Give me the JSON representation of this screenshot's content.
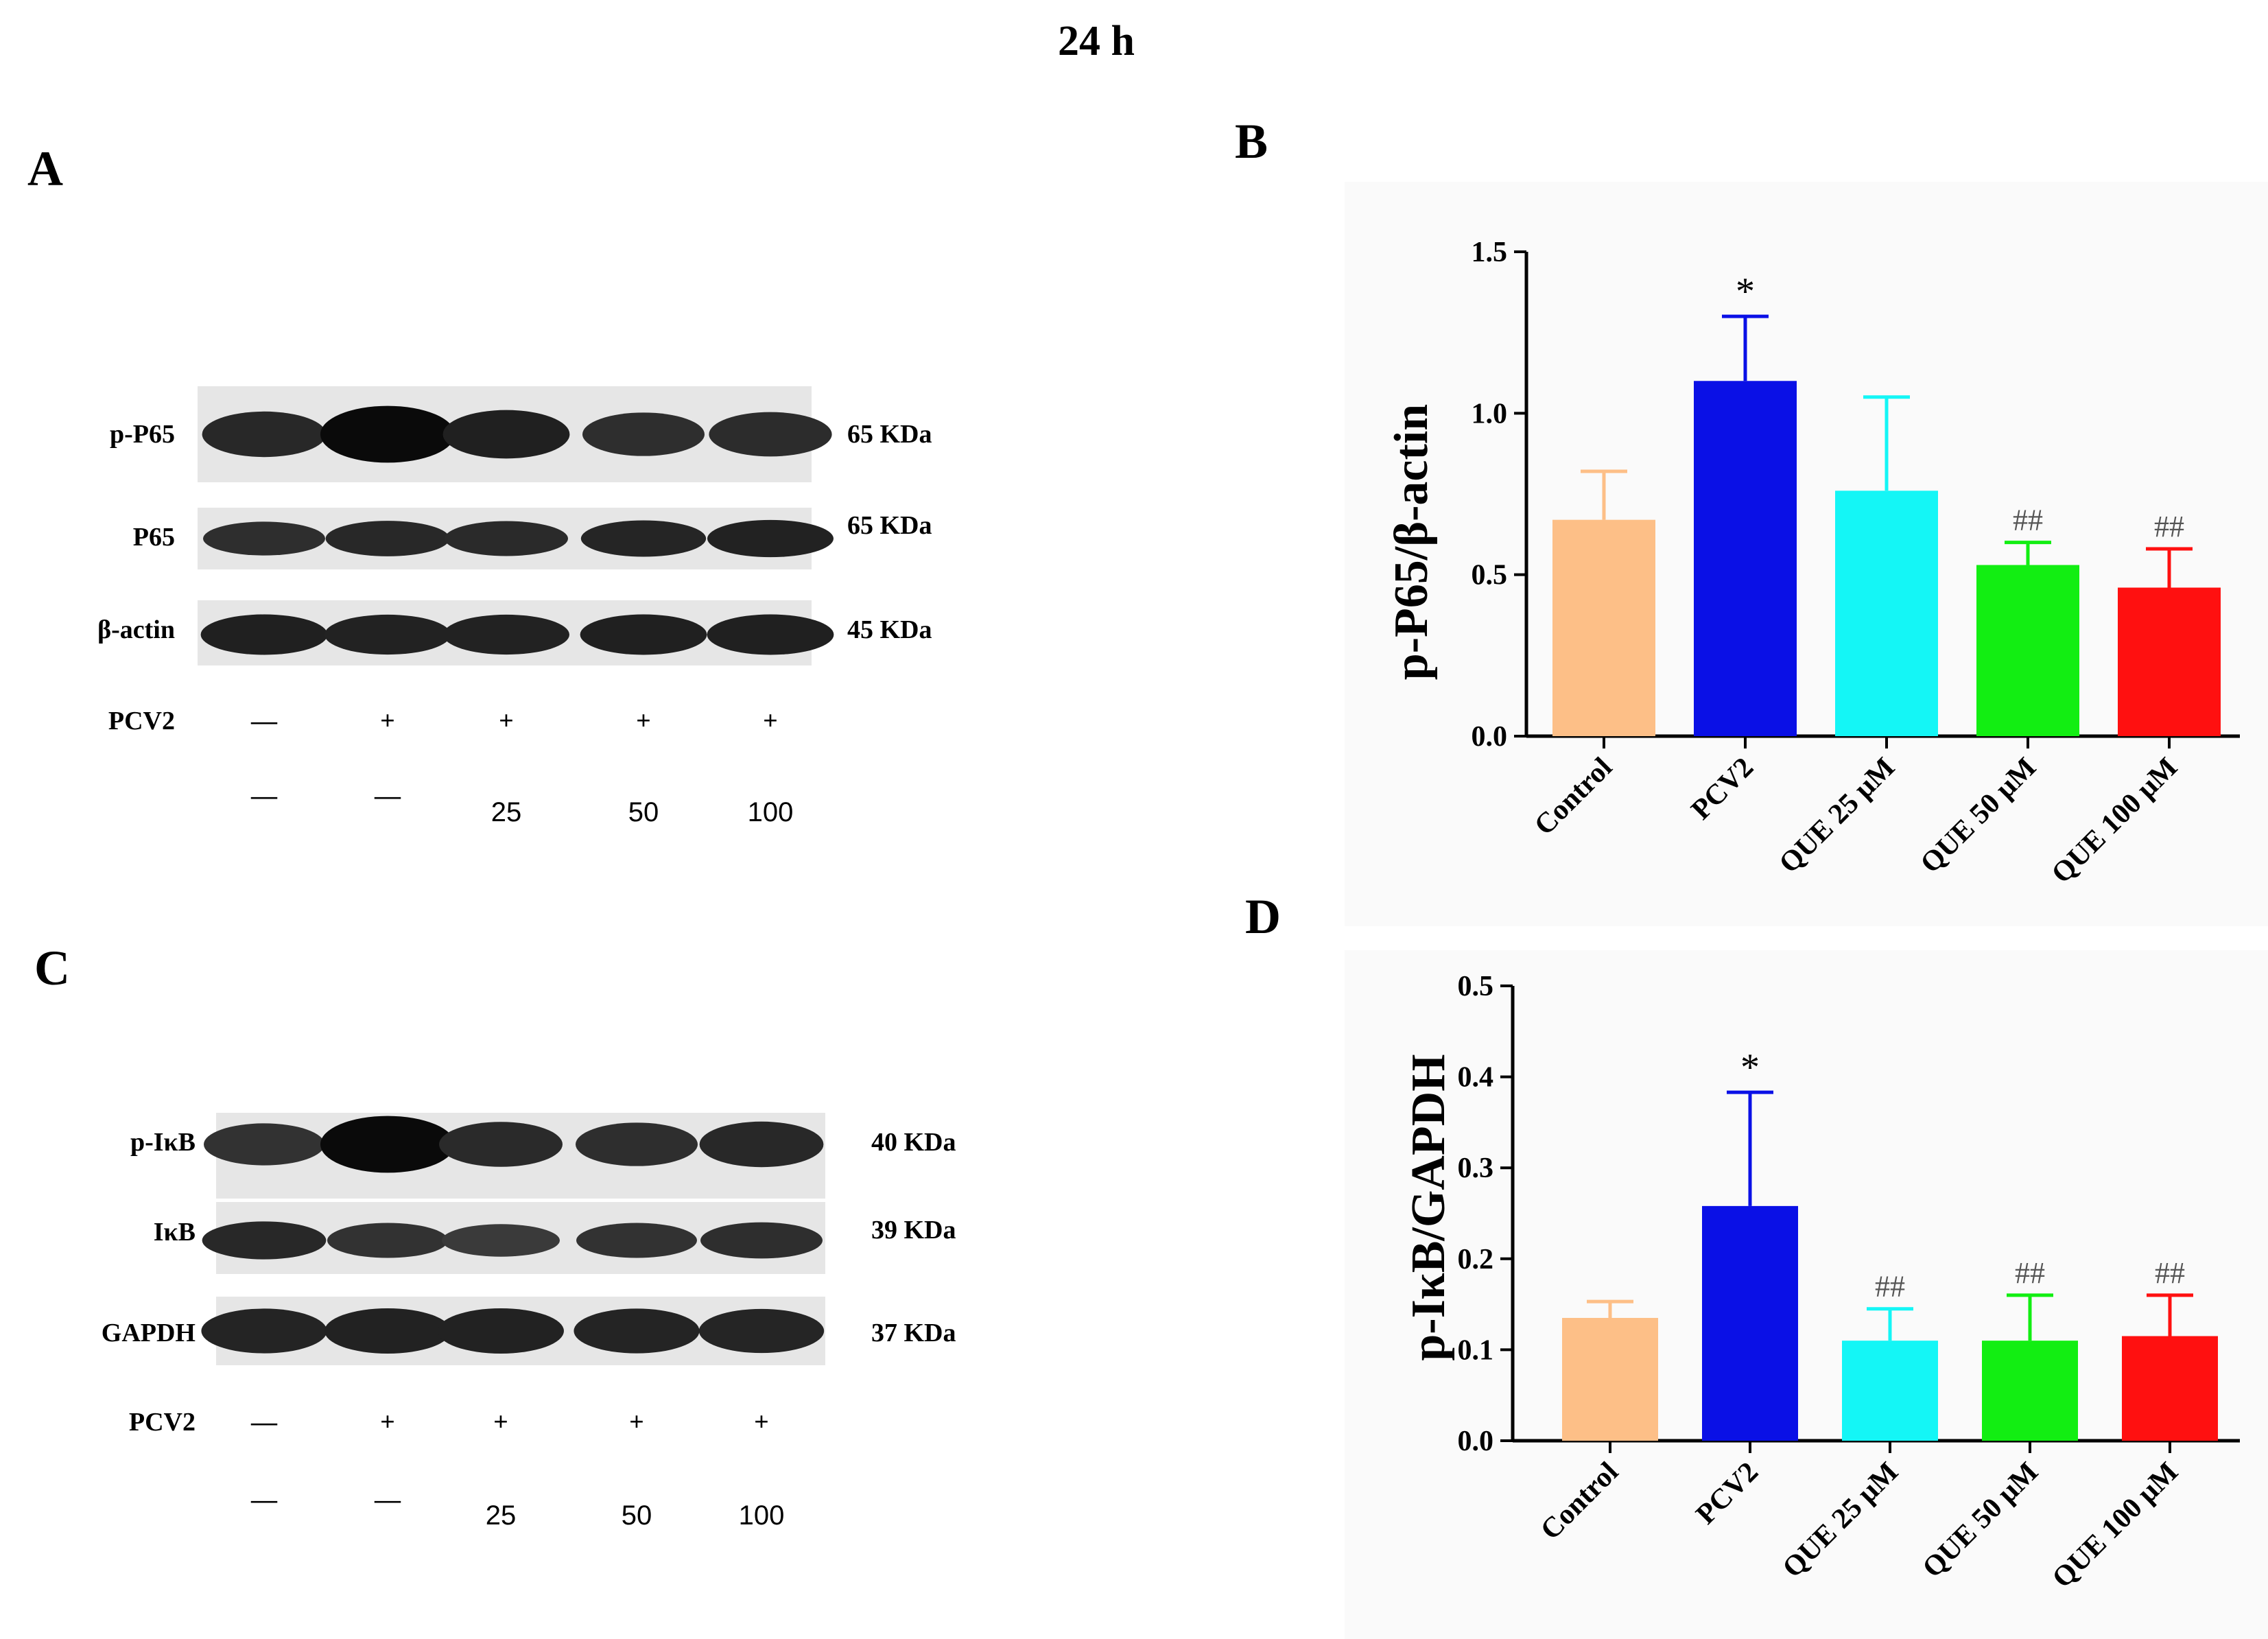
{
  "figure": {
    "title": "24 h",
    "panel_labels": {
      "a": "A",
      "b": "B",
      "c": "C",
      "d": "D"
    }
  },
  "blots": [
    {
      "panel": "A",
      "rows": [
        {
          "label": "p-P65",
          "size": "65 KDa",
          "intensity": [
            0.62,
            1.0,
            0.72,
            0.55,
            0.58
          ]
        },
        {
          "label": "P65",
          "size": "65 KDa",
          "intensity": [
            0.55,
            0.62,
            0.6,
            0.66,
            0.7
          ]
        },
        {
          "label": "β-actin",
          "size": "45 KDa",
          "intensity": [
            0.72,
            0.7,
            0.7,
            0.72,
            0.72
          ]
        }
      ],
      "treatment_rows": [
        {
          "label": "PCV2",
          "values": [
            "—",
            "+",
            "+",
            "+",
            "+"
          ]
        },
        {
          "label": "",
          "values": [
            "—",
            "—",
            "25",
            "50",
            "100"
          ]
        }
      ]
    },
    {
      "panel": "C",
      "rows": [
        {
          "label": "p-IκB",
          "size": "40 KDa",
          "intensity": [
            0.5,
            1.0,
            0.6,
            0.55,
            0.62
          ]
        },
        {
          "label": "IκB",
          "size": "39 KDa",
          "intensity": [
            0.62,
            0.5,
            0.4,
            0.5,
            0.55
          ]
        },
        {
          "label": "GAPDH",
          "size": "37 KDa",
          "intensity": [
            0.68,
            0.7,
            0.7,
            0.68,
            0.66
          ]
        }
      ],
      "treatment_rows": [
        {
          "label": "PCV2",
          "values": [
            "—",
            "+",
            "+",
            "+",
            "+"
          ]
        },
        {
          "label": "",
          "values": [
            "—",
            "—",
            "25",
            "50",
            "100"
          ]
        }
      ]
    }
  ],
  "chart_data": [
    {
      "panel": "B",
      "type": "bar",
      "title": "",
      "xlabel": "",
      "ylabel": "p-P65/β-actin",
      "ylim": [
        0,
        1.5
      ],
      "yticks": [
        0.0,
        0.5,
        1.0,
        1.5
      ],
      "ytick_labels": [
        "0.0",
        "0.5",
        "1.0",
        "1.5"
      ],
      "categories": [
        "Control",
        "PCV2",
        "QUE 25 μM",
        "QUE 50 μM",
        "QUE 100 μM"
      ],
      "values": [
        0.67,
        1.1,
        0.76,
        0.53,
        0.46
      ],
      "errors": [
        0.15,
        0.2,
        0.29,
        0.07,
        0.12
      ],
      "annotations": [
        "",
        "*",
        "",
        "##",
        "##"
      ],
      "colors": [
        "#FDBF87",
        "#0A10E6",
        "#14F6F6",
        "#12EE12",
        "#FF1010"
      ]
    },
    {
      "panel": "D",
      "type": "bar",
      "title": "",
      "xlabel": "",
      "ylabel": "p-IκB/GAPDH",
      "ylim": [
        0,
        0.5
      ],
      "yticks": [
        0.0,
        0.1,
        0.2,
        0.3,
        0.4,
        0.5
      ],
      "ytick_labels": [
        "0.0",
        "0.1",
        "0.2",
        "0.3",
        "0.4",
        "0.5"
      ],
      "categories": [
        "Control",
        "PCV2",
        "QUE 25 μM",
        "QUE 50 μM",
        "QUE 100 μM"
      ],
      "values": [
        0.135,
        0.258,
        0.11,
        0.11,
        0.115
      ],
      "errors": [
        0.018,
        0.125,
        0.035,
        0.05,
        0.045
      ],
      "annotations": [
        "",
        "*",
        "##",
        "##",
        "##"
      ],
      "colors": [
        "#FDBF87",
        "#0A10E6",
        "#14F6F6",
        "#12EE12",
        "#FF1010"
      ]
    }
  ]
}
